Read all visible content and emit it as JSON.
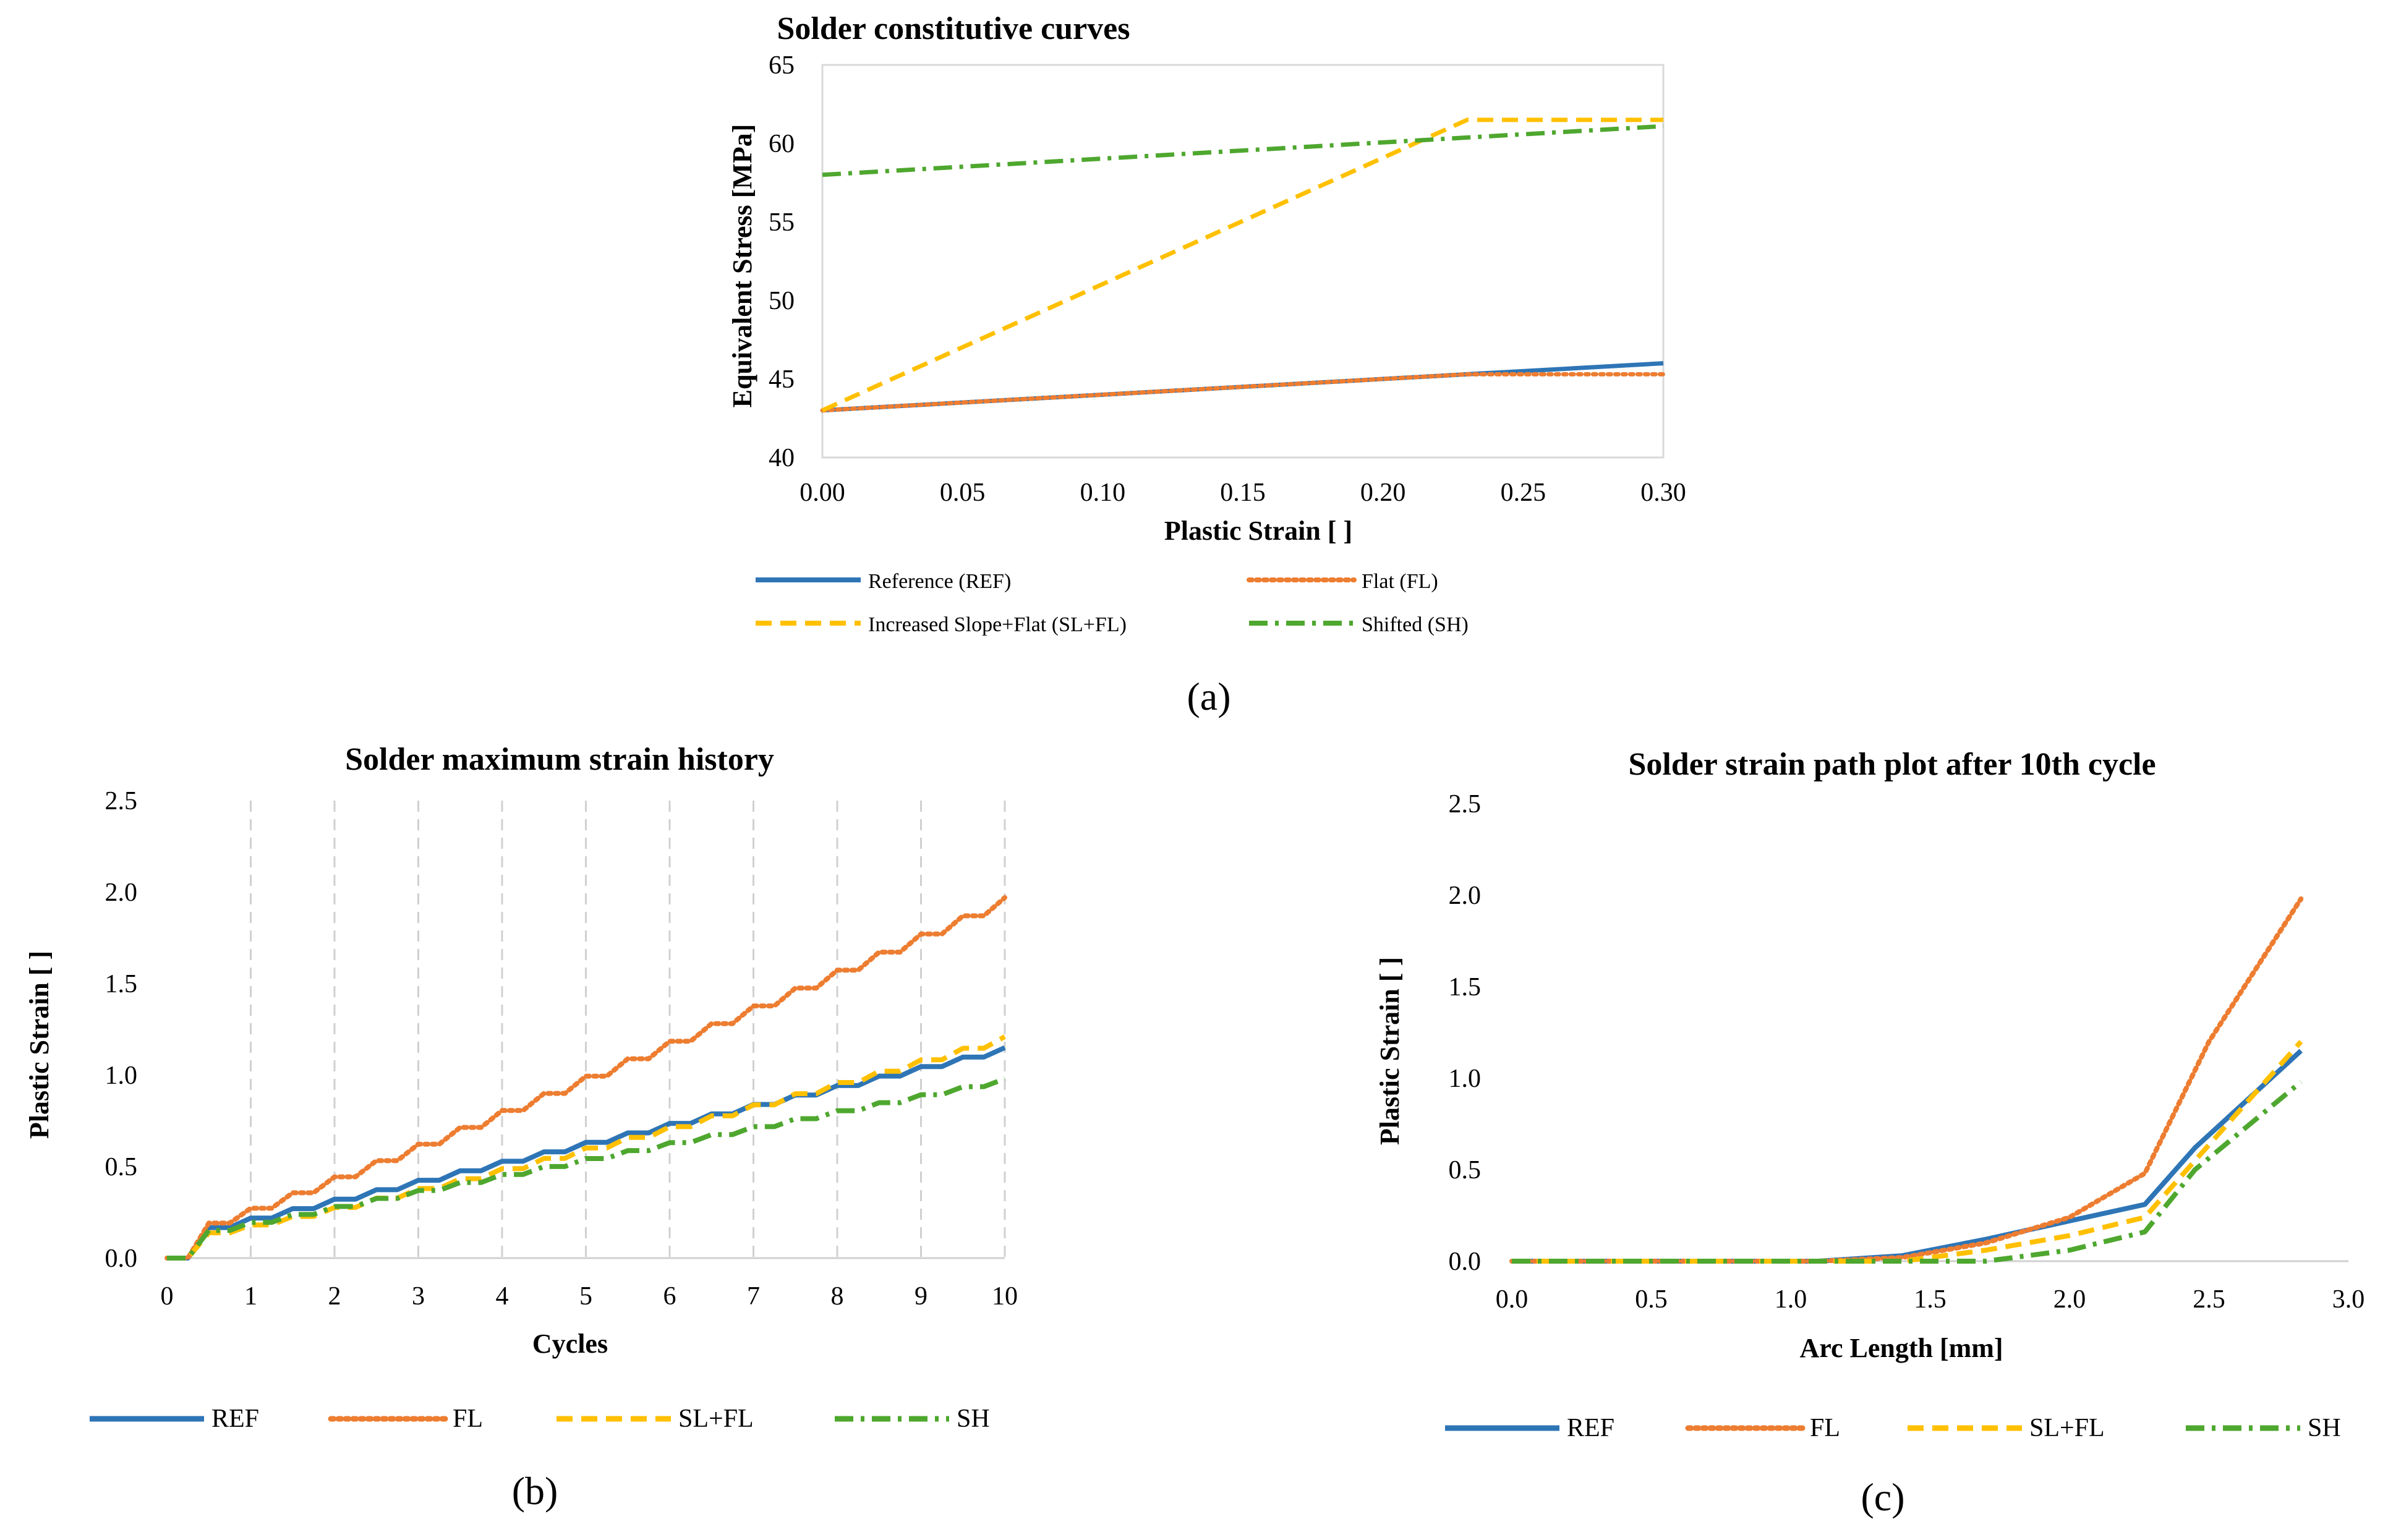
{
  "chart_data": [
    {
      "id": "a",
      "type": "line",
      "panel_label": "(a)",
      "title": "Solder constitutive curves",
      "xlabel": "Plastic Strain [   ]",
      "ylabel": "Equivalent Stress [MPa]",
      "xlim": [
        0,
        0.3
      ],
      "ylim": [
        40,
        65
      ],
      "xticks": [
        0,
        0.05,
        0.1,
        0.15,
        0.2,
        0.25,
        0.3
      ],
      "xtick_labels": [
        "0.00",
        "0.05",
        "0.10",
        "0.15",
        "0.20",
        "0.25",
        "0.30"
      ],
      "yticks": [
        40,
        45,
        50,
        55,
        60,
        65
      ],
      "ytick_labels": [
        "40",
        "45",
        "50",
        "55",
        "60",
        "65"
      ],
      "grid": false,
      "legend_position": "bottom",
      "series": [
        {
          "key": "ref",
          "name": "Reference (REF)",
          "color": "#2E75B6",
          "dash": "solid",
          "x": [
            0,
            0.3
          ],
          "y": [
            43.0,
            46.0
          ]
        },
        {
          "key": "fl",
          "name": "Flat (FL)",
          "color": "#ED7D31",
          "dash": "dot",
          "x": [
            0,
            0.23,
            0.3
          ],
          "y": [
            43.0,
            45.3,
            45.3
          ]
        },
        {
          "key": "slfl",
          "name": "Increased Slope+Flat (SL+FL)",
          "color": "#FFC000",
          "dash": "dash",
          "x": [
            0,
            0.23,
            0.3
          ],
          "y": [
            43.0,
            61.5,
            61.5
          ]
        },
        {
          "key": "sh",
          "name": "Shifted (SH)",
          "color": "#4EA72E",
          "dash": "dashdot",
          "x": [
            0,
            0.3
          ],
          "y": [
            58.0,
            61.1
          ]
        }
      ]
    },
    {
      "id": "b",
      "type": "line",
      "panel_label": "(b)",
      "title": "Solder maximum strain history",
      "xlabel": "Cycles",
      "ylabel": "Plastic Strain [   ]",
      "xlim": [
        0,
        10
      ],
      "ylim": [
        0,
        2.5
      ],
      "xticks": [
        0,
        1,
        2,
        3,
        4,
        5,
        6,
        7,
        8,
        9,
        10
      ],
      "xtick_labels": [
        "0",
        "1",
        "2",
        "3",
        "4",
        "5",
        "6",
        "7",
        "8",
        "9",
        "10"
      ],
      "yticks": [
        0,
        0.5,
        1,
        1.5,
        2,
        2.5
      ],
      "ytick_labels": [
        "0.0",
        "0.5",
        "1.0",
        "1.5",
        "2.0",
        "2.5"
      ],
      "grid": "vertical dashed",
      "legend_position": "bottom",
      "series": [
        {
          "key": "ref",
          "name": "REF",
          "color": "#2E75B6",
          "dash": "solid",
          "final": 1.15
        },
        {
          "key": "fl",
          "name": "FL",
          "color": "#ED7D31",
          "dash": "dot",
          "final": 1.97
        },
        {
          "key": "slfl",
          "name": "SL+FL",
          "color": "#FFC000",
          "dash": "dash",
          "final": 1.21
        },
        {
          "key": "sh",
          "name": "SH",
          "color": "#4EA72E",
          "dash": "dashdot",
          "final": 0.98
        }
      ]
    },
    {
      "id": "c",
      "type": "line",
      "panel_label": "(c)",
      "title": "Solder strain path plot after 10th cycle",
      "xlabel": "Arc Length [mm]",
      "ylabel": "Plastic Strain [   ]",
      "xlim": [
        0,
        3
      ],
      "ylim": [
        0,
        2.5
      ],
      "xticks": [
        0,
        0.5,
        1,
        1.5,
        2,
        2.5,
        3
      ],
      "xtick_labels": [
        "0.0",
        "0.5",
        "1.0",
        "1.5",
        "2.0",
        "2.5",
        "3.0"
      ],
      "yticks": [
        0,
        0.5,
        1,
        1.5,
        2,
        2.5
      ],
      "ytick_labels": [
        "0.0",
        "0.5",
        "1.0",
        "1.5",
        "2.0",
        "2.5"
      ],
      "grid": false,
      "legend_position": "bottom",
      "series": [
        {
          "key": "ref",
          "name": "REF",
          "color": "#2E75B6",
          "dash": "solid",
          "x": [
            0,
            1.1,
            1.4,
            1.7,
            2.0,
            2.27,
            2.45,
            2.83
          ],
          "y": [
            0,
            0,
            0.03,
            0.12,
            0.22,
            0.31,
            0.62,
            1.15
          ]
        },
        {
          "key": "fl",
          "name": "FL",
          "color": "#ED7D31",
          "dash": "dot",
          "x": [
            0,
            1.1,
            1.4,
            1.7,
            2.0,
            2.27,
            2.5,
            2.83
          ],
          "y": [
            0,
            0,
            0.02,
            0.1,
            0.24,
            0.48,
            1.2,
            1.98
          ]
        },
        {
          "key": "slfl",
          "name": "SL+FL",
          "color": "#FFC000",
          "dash": "dash",
          "x": [
            0,
            1.4,
            1.7,
            2.0,
            2.27,
            2.45,
            2.83
          ],
          "y": [
            0,
            0,
            0.06,
            0.14,
            0.24,
            0.55,
            1.2
          ]
        },
        {
          "key": "sh",
          "name": "SH",
          "color": "#4EA72E",
          "dash": "dashdot",
          "x": [
            0,
            1.7,
            2.0,
            2.27,
            2.45,
            2.83
          ],
          "y": [
            0,
            0,
            0.06,
            0.16,
            0.5,
            0.98
          ]
        }
      ]
    }
  ]
}
